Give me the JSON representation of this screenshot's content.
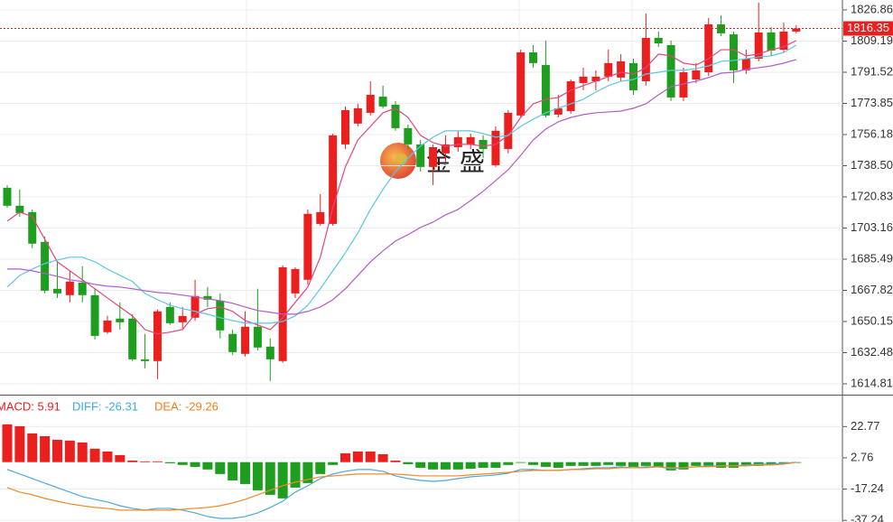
{
  "chart_data": [
    {
      "type": "candlestick",
      "watermark": "金 盛",
      "up_color": "#ec1f1f",
      "down_color": "#1e9e1e",
      "last_price": 1816.35,
      "ylim": [
        1608.66,
        1832.49
      ],
      "yticks": [
        1826.86,
        1809.19,
        1791.52,
        1773.85,
        1756.18,
        {
          "value": 1738.5,
          "label": "1738.50"
        },
        1720.83,
        1703.16,
        1685.49,
        1667.82,
        1650.15,
        1632.48,
        1614.81
      ],
      "grid": true,
      "open": [
        1726.0,
        1715.8,
        1712.2,
        1695.3,
        1668.7,
        1665.1,
        1672.2,
        1665.1,
        1644.1,
        1651.8,
        1651.8,
        1628.7,
        1627.7,
        1658.4,
        1649.7,
        1652.3,
        1664.6,
        1662.0,
        1643.1,
        1631.8,
        1647.2,
        1635.9,
        1627.7,
        1666.1,
        1673.8,
        1705.5,
        1705.5,
        1750.6,
        1762.4,
        1768.5,
        1777.7,
        1773.1,
        1759.8,
        1750.6,
        1737.8,
        1745.5,
        1749.0,
        1750.6,
        1753.1,
        1738.8,
        1748.0,
        1767.0,
        1802.8,
        1795.6,
        1767.5,
        1769.5,
        1785.4,
        1786.4,
        1789.0,
        1788.5,
        1796.7,
        1786.4,
        1811.0,
        1806.9,
        1777.2,
        1787.4,
        1791.5,
        1818.7,
        1813.0,
        1792.6,
        1799.2,
        1814.1,
        1804.3,
        1814.6
      ],
      "high": [
        1727.5,
        1725.0,
        1713.7,
        1698.4,
        1684.0,
        1678.9,
        1681.5,
        1668.7,
        1653.3,
        1661.0,
        1654.3,
        1643.1,
        1656.9,
        1661.0,
        1658.4,
        1673.8,
        1669.7,
        1666.1,
        1645.6,
        1655.9,
        1668.7,
        1640.5,
        1682.0,
        1680.9,
        1713.7,
        1722.4,
        1756.7,
        1772.1,
        1773.6,
        1786.4,
        1783.9,
        1775.2,
        1761.8,
        1753.1,
        1750.6,
        1755.7,
        1758.3,
        1756.7,
        1755.7,
        1760.8,
        1770.0,
        1804.3,
        1806.9,
        1809.5,
        1778.7,
        1787.4,
        1794.1,
        1792.6,
        1804.3,
        1801.8,
        1799.2,
        1824.8,
        1814.6,
        1809.5,
        1794.1,
        1796.7,
        1822.3,
        1823.8,
        1814.6,
        1804.3,
        1831.0,
        1817.1,
        1819.7,
        1818.2
      ],
      "low": [
        1714.7,
        1709.6,
        1691.7,
        1666.1,
        1663.5,
        1661.0,
        1661.0,
        1640.0,
        1643.1,
        1645.6,
        1627.7,
        1623.6,
        1617.5,
        1648.2,
        1645.6,
        1650.7,
        1658.4,
        1640.5,
        1631.3,
        1630.3,
        1633.8,
        1616.4,
        1626.7,
        1663.5,
        1671.2,
        1704.5,
        1704.5,
        1748.0,
        1760.8,
        1767.0,
        1771.1,
        1758.3,
        1748.0,
        1735.2,
        1727.5,
        1740.3,
        1746.5,
        1748.0,
        1742.9,
        1737.8,
        1745.5,
        1765.9,
        1794.1,
        1765.9,
        1765.9,
        1768.0,
        1781.3,
        1781.3,
        1786.4,
        1786.4,
        1778.7,
        1783.9,
        1805.9,
        1775.2,
        1775.2,
        1785.4,
        1789.5,
        1812.0,
        1785.4,
        1790.5,
        1797.7,
        1800.8,
        1802.8,
        1813.6
      ],
      "close": [
        1715.8,
        1711.7,
        1694.3,
        1667.6,
        1666.1,
        1672.8,
        1665.1,
        1642.0,
        1650.7,
        1649.7,
        1628.7,
        1627.7,
        1655.9,
        1649.2,
        1653.3,
        1664.6,
        1662.5,
        1645.1,
        1632.8,
        1647.2,
        1635.4,
        1628.7,
        1680.9,
        1679.9,
        1711.2,
        1712.2,
        1755.7,
        1770.0,
        1771.1,
        1778.7,
        1772.1,
        1759.8,
        1750.6,
        1737.8,
        1749.0,
        1750.6,
        1754.7,
        1754.7,
        1748.0,
        1758.3,
        1768.5,
        1802.8,
        1796.7,
        1767.0,
        1771.1,
        1786.4,
        1789.0,
        1789.0,
        1796.7,
        1797.7,
        1781.3,
        1811.0,
        1807.9,
        1777.2,
        1791.5,
        1792.6,
        1818.7,
        1813.6,
        1792.6,
        1799.2,
        1814.1,
        1803.8,
        1814.6,
        1816.35
      ],
      "series": [
        {
          "color": "#e2457e",
          "values": [
            1707.1,
            1712.2,
            1709.6,
            1696.8,
            1684.0,
            1678.9,
            1673.8,
            1668.7,
            1663.5,
            1658.4,
            1653.3,
            1645.6,
            1643.1,
            1644.1,
            1645.6,
            1654.3,
            1657.4,
            1658.4,
            1655.9,
            1650.7,
            1648.2,
            1645.6,
            1652.3,
            1661.0,
            1669.7,
            1686.6,
            1714.7,
            1737.8,
            1753.1,
            1760.8,
            1768.5,
            1771.1,
            1765.9,
            1755.7,
            1751.6,
            1749.6,
            1750.6,
            1750.6,
            1749.6,
            1750.6,
            1755.7,
            1765.9,
            1773.6,
            1776.2,
            1777.2,
            1781.3,
            1783.9,
            1786.4,
            1789.0,
            1791.5,
            1790.5,
            1794.1,
            1801.8,
            1800.8,
            1796.7,
            1795.6,
            1799.2,
            1804.3,
            1804.3,
            1800.8,
            1801.8,
            1804.3,
            1805.9,
            1809.5
          ]
        },
        {
          "color": "#5cc6e2",
          "values": [
            1669.7,
            1676.3,
            1679.9,
            1683.0,
            1685.0,
            1686.6,
            1686.6,
            1684.0,
            1679.9,
            1676.3,
            1672.8,
            1666.1,
            1662.5,
            1659.4,
            1657.4,
            1655.9,
            1654.3,
            1652.3,
            1650.7,
            1649.2,
            1649.2,
            1649.2,
            1650.2,
            1653.3,
            1659.4,
            1668.7,
            1678.9,
            1689.1,
            1700.4,
            1713.7,
            1725.0,
            1735.2,
            1742.9,
            1749.6,
            1754.7,
            1758.3,
            1758.3,
            1758.3,
            1756.7,
            1754.7,
            1755.7,
            1760.8,
            1764.9,
            1768.5,
            1771.1,
            1773.6,
            1776.2,
            1780.3,
            1783.9,
            1786.4,
            1787.4,
            1790.5,
            1791.5,
            1792.6,
            1792.6,
            1793.6,
            1795.1,
            1797.7,
            1798.2,
            1799.2,
            1800.2,
            1800.8,
            1802.8,
            1806.9
          ]
        },
        {
          "color": "#b45ccb",
          "values": [
            1679.9,
            1679.9,
            1678.9,
            1677.4,
            1675.8,
            1673.8,
            1672.8,
            1671.2,
            1670.2,
            1669.7,
            1668.7,
            1667.6,
            1666.6,
            1666.1,
            1665.1,
            1664.1,
            1663.0,
            1662.0,
            1660.5,
            1658.4,
            1656.4,
            1655.4,
            1654.3,
            1654.3,
            1655.9,
            1658.4,
            1662.5,
            1668.7,
            1676.3,
            1684.0,
            1690.2,
            1695.8,
            1699.4,
            1703.5,
            1706.5,
            1710.6,
            1713.7,
            1718.8,
            1724.0,
            1730.1,
            1736.2,
            1744.4,
            1753.1,
            1759.3,
            1763.4,
            1765.9,
            1767.5,
            1768.5,
            1769.0,
            1769.5,
            1771.1,
            1773.6,
            1778.7,
            1783.3,
            1784.9,
            1786.4,
            1788.5,
            1791.0,
            1791.5,
            1793.1,
            1794.1,
            1795.1,
            1796.7,
            1798.7
          ]
        }
      ]
    },
    {
      "type": "macd",
      "legend": [
        {
          "text": "MACD: 5.91",
          "color": "#e8201e"
        },
        {
          "text": "DIFF: -26.31",
          "color": "#3fa9e0"
        },
        {
          "text": "DEA: -29.26",
          "color": "#f07f1a"
        }
      ],
      "ylim": [
        -38.3,
        42.6
      ],
      "yticks": [
        22.77,
        2.76,
        -17.24,
        -37.24
      ],
      "histogram": {
        "up_color": "#ec1f1f",
        "down_color": "#1e9e1e",
        "values": [
          24.2,
          23.0,
          18.4,
          16.6,
          14.3,
          13.8,
          12.6,
          8.6,
          6.8,
          4.5,
          1.0,
          0.5,
          0.5,
          -0.7,
          -1.8,
          -3.0,
          -4.7,
          -7.6,
          -11.7,
          -14.0,
          -18.0,
          -20.9,
          -23.2,
          -16.3,
          -13.4,
          -7.6,
          -1.8,
          5.7,
          6.8,
          6.8,
          5.1,
          1.0,
          -1.3,
          -3.6,
          -4.7,
          -4.7,
          -4.7,
          -4.2,
          -3.6,
          -3.6,
          -1.8,
          -0.1,
          -1.8,
          -3.0,
          -3.6,
          -2.4,
          -2.4,
          -2.4,
          -1.8,
          -2.4,
          -3.0,
          -2.4,
          -3.0,
          -5.3,
          -4.7,
          -2.4,
          -2.4,
          -3.6,
          -3.6,
          -1.8,
          -2.4,
          -1.8,
          -0.7,
          -0.1
        ]
      },
      "series": [
        {
          "color": "#4da8dc",
          "values": [
            -4.7,
            -7.6,
            -10.5,
            -13.4,
            -16.3,
            -19.2,
            -22.1,
            -23.8,
            -25.5,
            -27.9,
            -29.6,
            -30.7,
            -29.6,
            -29.6,
            -30.7,
            -32.5,
            -34.8,
            -36.0,
            -36.0,
            -34.8,
            -32.5,
            -29.0,
            -25.0,
            -19.2,
            -15.1,
            -10.5,
            -7.6,
            -5.9,
            -4.7,
            -4.7,
            -5.9,
            -8.8,
            -10.5,
            -11.7,
            -12.3,
            -11.7,
            -10.5,
            -9.4,
            -8.8,
            -8.2,
            -7.1,
            -4.7,
            -4.7,
            -5.3,
            -5.3,
            -4.7,
            -4.2,
            -3.6,
            -3.6,
            -3.0,
            -3.6,
            -3.0,
            -3.0,
            -4.2,
            -3.6,
            -3.0,
            -2.4,
            -2.4,
            -2.4,
            -1.8,
            -1.3,
            -1.3,
            -0.7,
            -0.1
          ]
        },
        {
          "color": "#f08a2a",
          "values": [
            -16.3,
            -19.2,
            -20.9,
            -23.2,
            -25.0,
            -26.7,
            -27.9,
            -29.0,
            -29.6,
            -30.7,
            -30.7,
            -30.7,
            -30.7,
            -30.7,
            -30.2,
            -29.6,
            -29.0,
            -27.9,
            -26.1,
            -23.8,
            -20.9,
            -18.0,
            -15.1,
            -12.8,
            -11.1,
            -9.4,
            -8.8,
            -8.2,
            -7.6,
            -7.6,
            -7.6,
            -7.6,
            -8.2,
            -8.8,
            -8.8,
            -8.8,
            -8.8,
            -8.2,
            -7.6,
            -7.1,
            -6.5,
            -5.9,
            -5.3,
            -5.3,
            -5.3,
            -4.7,
            -4.7,
            -4.2,
            -4.2,
            -3.6,
            -3.6,
            -3.6,
            -3.0,
            -3.6,
            -3.6,
            -3.0,
            -3.0,
            -2.4,
            -2.4,
            -2.4,
            -1.8,
            -1.8,
            -1.3,
            -0.1
          ]
        }
      ]
    }
  ]
}
